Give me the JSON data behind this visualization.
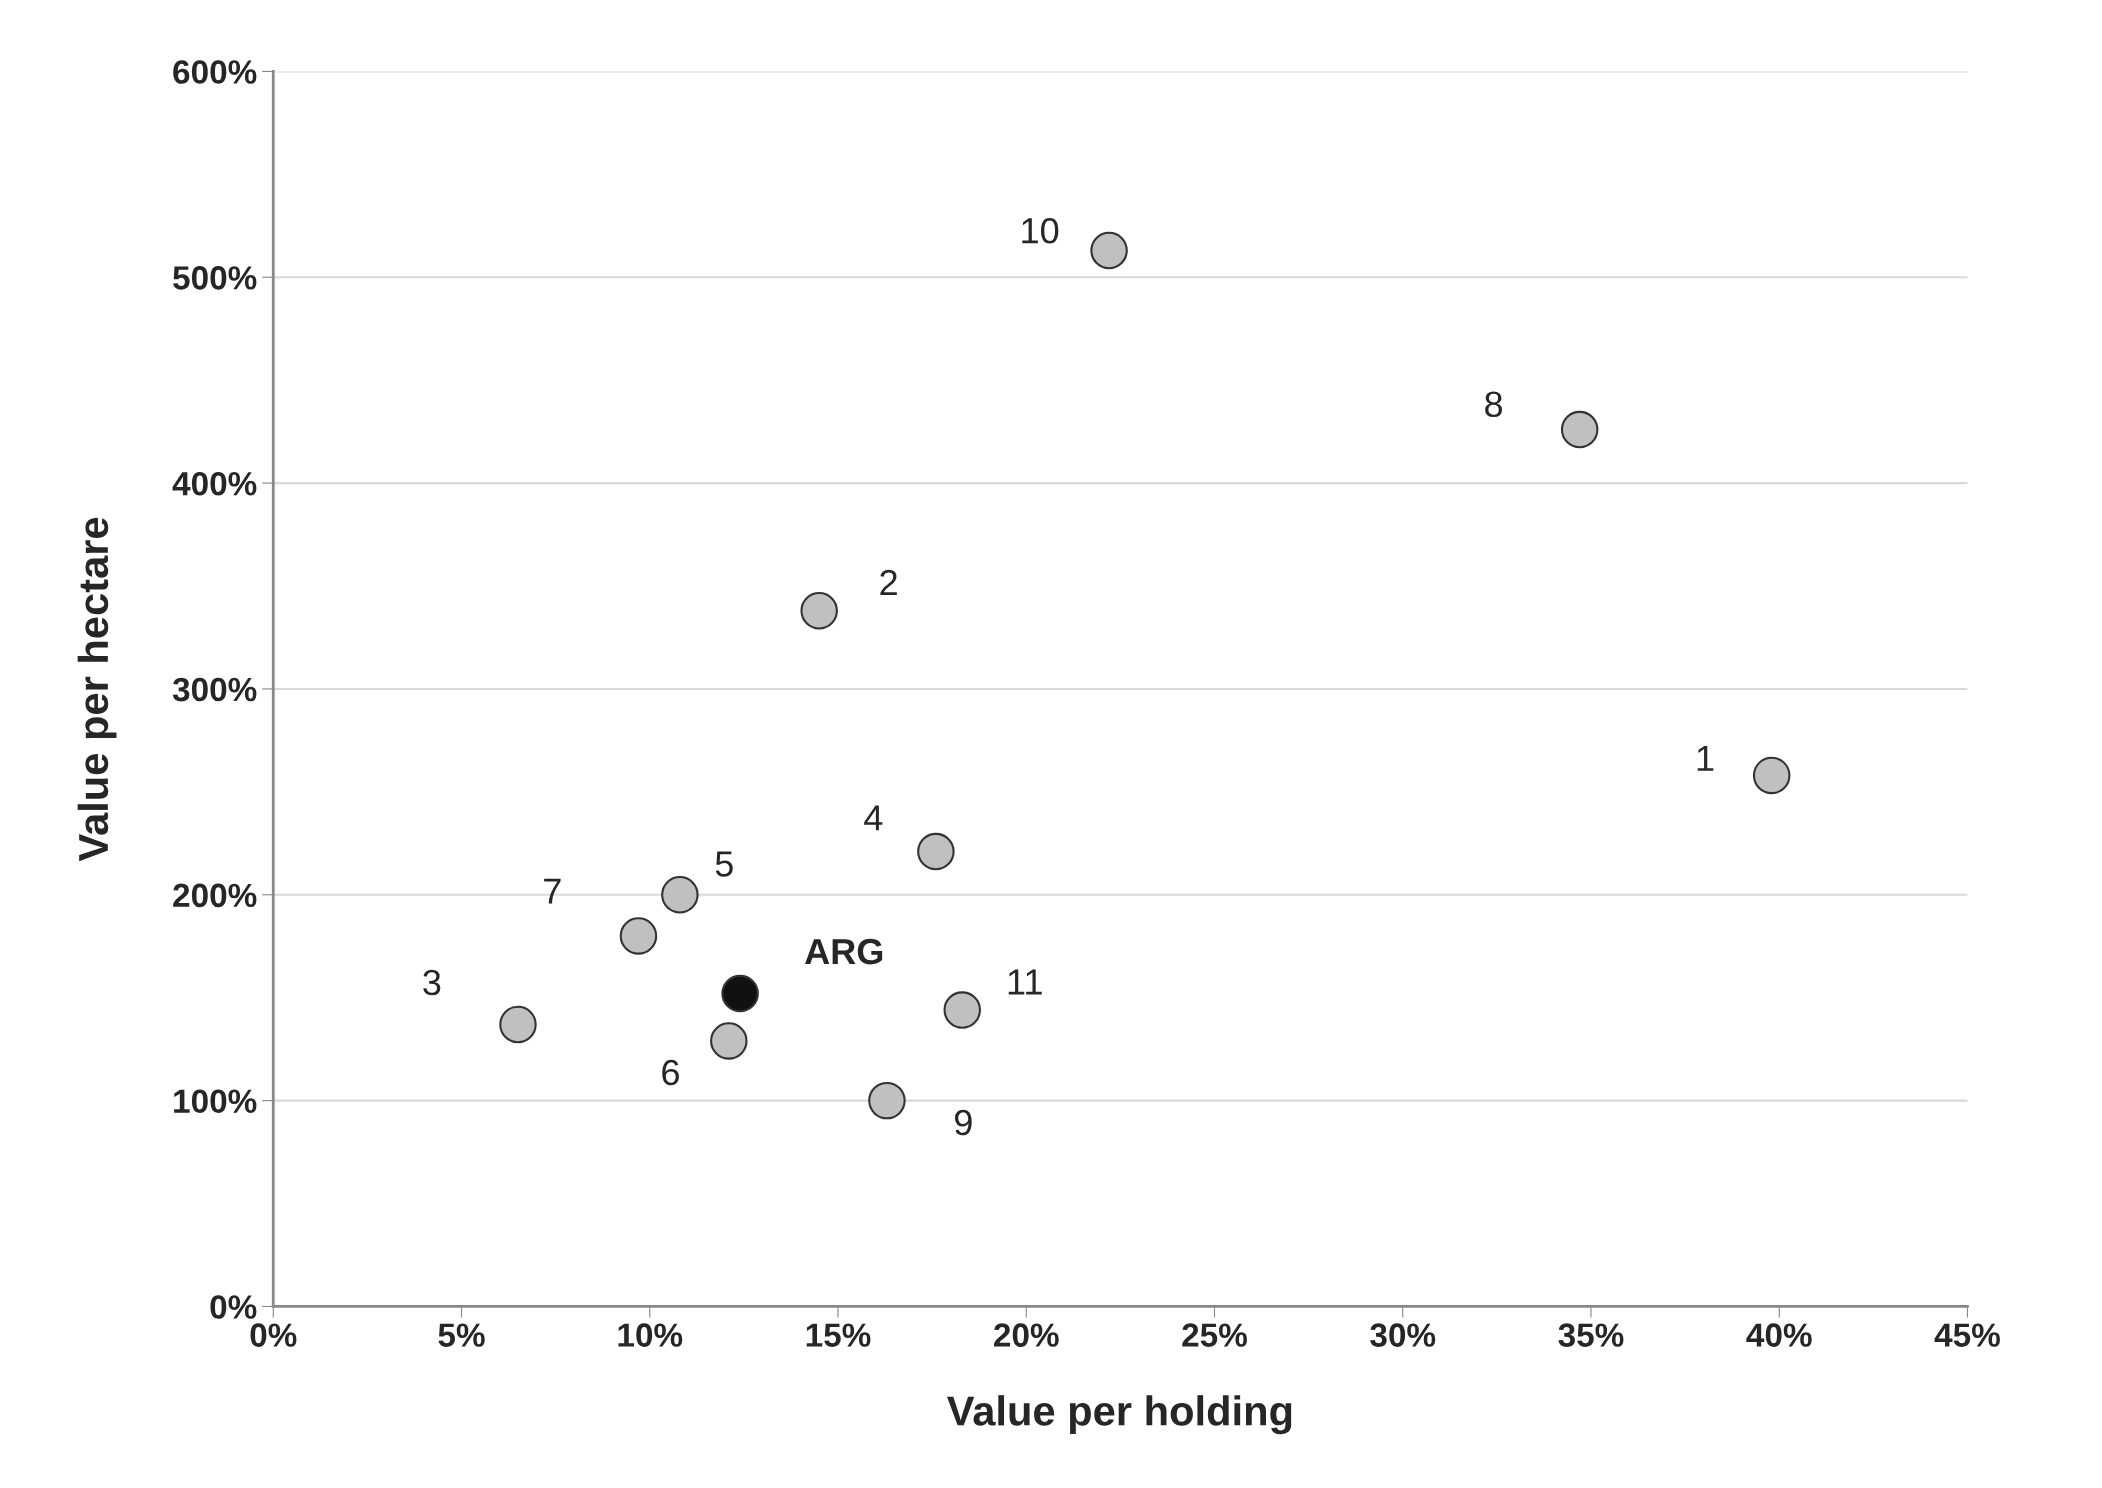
{
  "chart_data": {
    "type": "scatter",
    "xlabel": "Value per holding",
    "ylabel": "Value per hectare",
    "x": [
      39.8,
      14.5,
      6.5,
      17.6,
      10.8,
      12.1,
      9.7,
      34.7,
      16.3,
      22.2,
      18.3,
      12.4
    ],
    "values": [
      258,
      338,
      137,
      221,
      200,
      129,
      180,
      426,
      100,
      513,
      144,
      152
    ],
    "colors": [
      "#c0c0c0",
      "#c0c0c0",
      "#c0c0c0",
      "#c0c0c0",
      "#c0c0c0",
      "#c0c0c0",
      "#c0c0c0",
      "#c0c0c0",
      "#c0c0c0",
      "#c0c0c0",
      "#c0c0c0",
      "#111111"
    ],
    "marker": "circle",
    "grid": "y",
    "xlim": [
      0,
      45
    ],
    "ylim": [
      0,
      600
    ],
    "xticks": [
      {
        "value": 0,
        "label": "0%"
      },
      {
        "value": 5,
        "label": "5%"
      },
      {
        "value": 10,
        "label": "10%"
      },
      {
        "value": 15,
        "label": "15%"
      },
      {
        "value": 20,
        "label": "20%"
      },
      {
        "value": 25,
        "label": "25%"
      },
      {
        "value": 30,
        "label": "30%"
      },
      {
        "value": 35,
        "label": "35%"
      },
      {
        "value": 40,
        "label": "40%"
      },
      {
        "value": 45,
        "label": "45%"
      }
    ],
    "yticks": [
      {
        "value": 0,
        "label": "0%"
      },
      {
        "value": 100,
        "label": "100%"
      },
      {
        "value": 200,
        "label": "200%"
      },
      {
        "value": 300,
        "label": "300%"
      },
      {
        "value": 400,
        "label": "400%"
      },
      {
        "value": 500,
        "label": "500%"
      },
      {
        "value": 600,
        "label": "600%"
      }
    ],
    "annotations": [
      {
        "text": "1",
        "x": 39.8,
        "y": 258
      },
      {
        "text": "2",
        "x": 14.5,
        "y": 338
      },
      {
        "text": "3",
        "x": 6.5,
        "y": 137
      },
      {
        "text": "4",
        "x": 17.6,
        "y": 221
      },
      {
        "text": "5",
        "x": 10.8,
        "y": 200
      },
      {
        "text": "6",
        "x": 12.1,
        "y": 129
      },
      {
        "text": "7",
        "x": 9.7,
        "y": 180
      },
      {
        "text": "8",
        "x": 34.7,
        "y": 426
      },
      {
        "text": "9",
        "x": 16.3,
        "y": 100
      },
      {
        "text": "10",
        "x": 22.2,
        "y": 513
      },
      {
        "text": "11",
        "x": 18.3,
        "y": 144
      },
      {
        "text": "ARG",
        "x": 12.4,
        "y": 152
      }
    ]
  }
}
